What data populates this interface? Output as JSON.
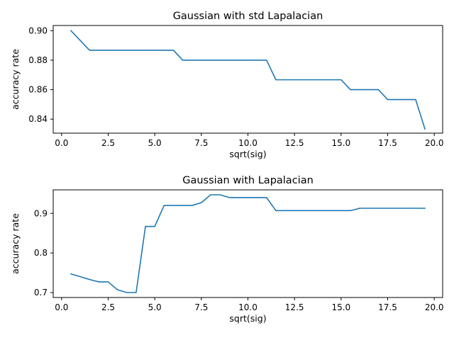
{
  "chart_data": [
    {
      "type": "line",
      "title": "Gaussian with std Lapalacian",
      "xlabel": "sqrt(sig)",
      "ylabel": "accuracy rate",
      "xlim": [
        -0.45,
        20.45
      ],
      "ylim": [
        0.8305,
        0.9035
      ],
      "xticks": [
        0.0,
        2.5,
        5.0,
        7.5,
        10.0,
        12.5,
        15.0,
        17.5,
        20.0
      ],
      "xtick_labels": [
        "0.0",
        "2.5",
        "5.0",
        "7.5",
        "10.0",
        "12.5",
        "15.0",
        "17.5",
        "20.0"
      ],
      "yticks": [
        0.84,
        0.86,
        0.88,
        0.9
      ],
      "ytick_labels": [
        "0.84",
        "0.86",
        "0.88",
        "0.90"
      ],
      "grid": false,
      "color": "#1f77b4",
      "x": [
        0.5,
        1.5,
        2.0,
        3.0,
        4.0,
        5.0,
        6.0,
        6.5,
        7.0,
        8.0,
        9.0,
        10.0,
        11.0,
        11.5,
        12.0,
        13.0,
        14.0,
        15.0,
        15.5,
        16.0,
        17.0,
        17.5,
        18.0,
        19.0,
        19.5
      ],
      "y": [
        0.9,
        0.8867,
        0.8867,
        0.8867,
        0.8867,
        0.8867,
        0.8867,
        0.88,
        0.88,
        0.88,
        0.88,
        0.88,
        0.88,
        0.8667,
        0.8667,
        0.8667,
        0.8667,
        0.8667,
        0.86,
        0.86,
        0.86,
        0.8533,
        0.8533,
        0.8533,
        0.8333
      ]
    },
    {
      "type": "line",
      "title": "Gaussian with Lapalacian",
      "xlabel": "sqrt(sig)",
      "ylabel": "accuracy rate",
      "xlim": [
        -0.45,
        20.45
      ],
      "ylim": [
        0.6875,
        0.9595
      ],
      "xticks": [
        0.0,
        2.5,
        5.0,
        7.5,
        10.0,
        12.5,
        15.0,
        17.5,
        20.0
      ],
      "xtick_labels": [
        "0.0",
        "2.5",
        "5.0",
        "7.5",
        "10.0",
        "12.5",
        "15.0",
        "17.5",
        "20.0"
      ],
      "yticks": [
        0.7,
        0.8,
        0.9
      ],
      "ytick_labels": [
        "0.7",
        "0.8",
        "0.9"
      ],
      "grid": false,
      "color": "#1f77b4",
      "x": [
        0.5,
        1.0,
        1.5,
        2.0,
        2.5,
        3.0,
        3.5,
        4.0,
        4.5,
        5.0,
        5.5,
        6.0,
        6.5,
        7.0,
        7.5,
        8.0,
        8.5,
        9.0,
        9.5,
        10.0,
        10.5,
        11.0,
        11.5,
        12.0,
        12.5,
        13.0,
        13.5,
        14.0,
        14.5,
        15.0,
        15.5,
        16.0,
        16.5,
        17.0,
        17.5,
        18.0,
        18.5,
        19.0,
        19.5
      ],
      "y": [
        0.747,
        0.74,
        0.733,
        0.727,
        0.727,
        0.707,
        0.7,
        0.7,
        0.867,
        0.867,
        0.92,
        0.92,
        0.92,
        0.92,
        0.927,
        0.947,
        0.947,
        0.94,
        0.94,
        0.94,
        0.94,
        0.94,
        0.907,
        0.907,
        0.907,
        0.907,
        0.907,
        0.907,
        0.907,
        0.907,
        0.907,
        0.913,
        0.913,
        0.913,
        0.913,
        0.913,
        0.913,
        0.913,
        0.913
      ]
    }
  ]
}
